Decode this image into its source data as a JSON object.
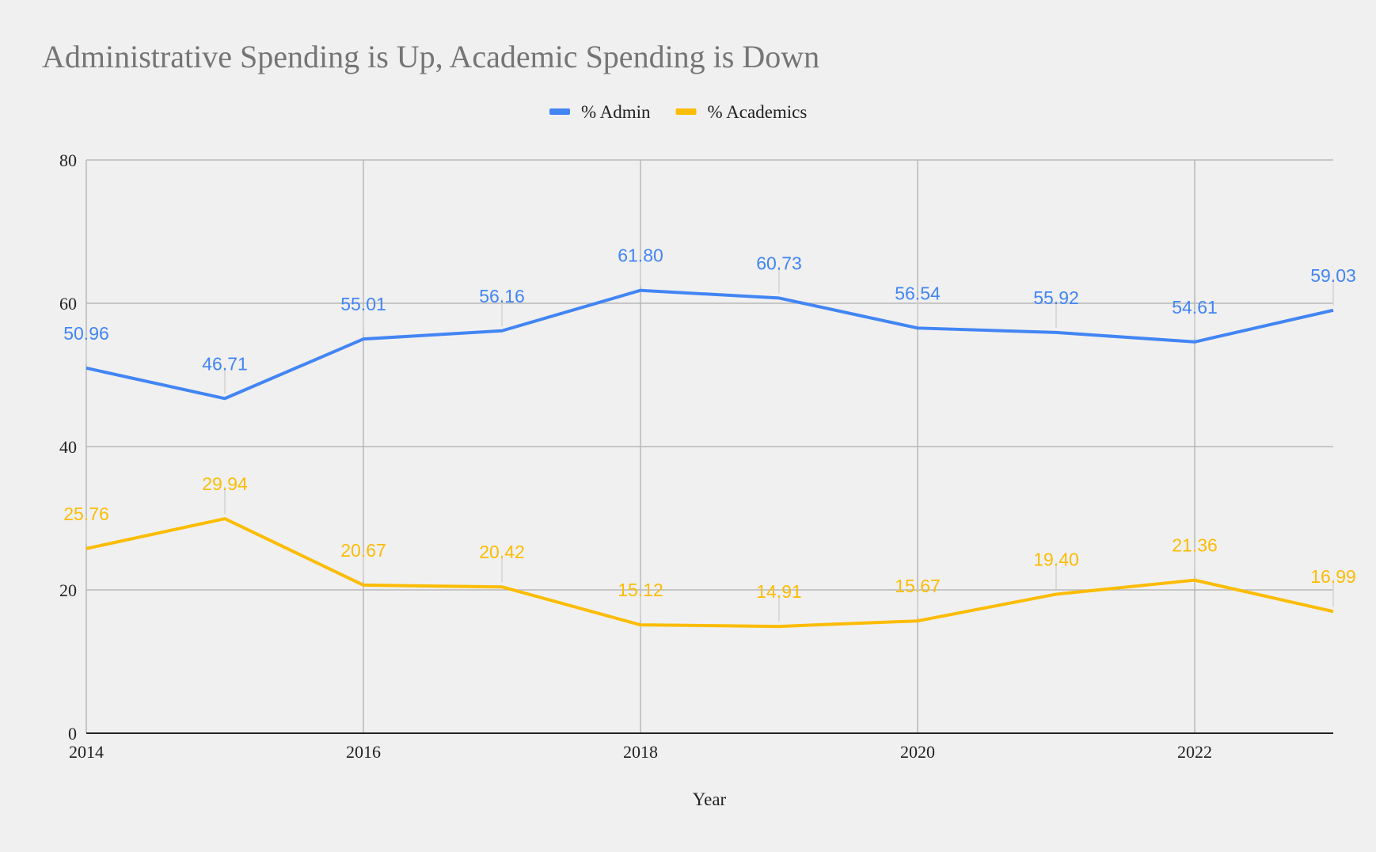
{
  "chart_data": {
    "type": "line",
    "title": "Administrative Spending is Up, Academic Spending is Down",
    "xlabel": "Year",
    "ylabel": "",
    "x": [
      2014,
      2015,
      2016,
      2017,
      2018,
      2019,
      2020,
      2021,
      2022,
      2023
    ],
    "xlim": [
      2014,
      2023
    ],
    "ylim": [
      0,
      80
    ],
    "x_ticks": [
      "2014",
      "2016",
      "2018",
      "2020",
      "2022"
    ],
    "y_ticks": [
      "0",
      "20",
      "40",
      "60",
      "80"
    ],
    "grid": true,
    "legend_position": "top-center",
    "series": [
      {
        "name": "% Admin",
        "color": "#4285f4",
        "values": [
          50.96,
          46.71,
          55.01,
          56.16,
          61.8,
          60.73,
          56.54,
          55.92,
          54.61,
          59.03
        ],
        "labels": [
          "50.96",
          "46.71",
          "55.01",
          "56.16",
          "61.80",
          "60.73",
          "56.54",
          "55.92",
          "54.61",
          "59.03"
        ]
      },
      {
        "name": "% Academics",
        "color": "#fbbc04",
        "values": [
          25.76,
          29.94,
          20.67,
          20.42,
          15.12,
          14.91,
          15.67,
          19.4,
          21.36,
          16.99
        ],
        "labels": [
          "25.76",
          "29.94",
          "20.67",
          "20.42",
          "15.12",
          "14.91",
          "15.67",
          "19.40",
          "21.36",
          "16.99"
        ]
      }
    ]
  }
}
